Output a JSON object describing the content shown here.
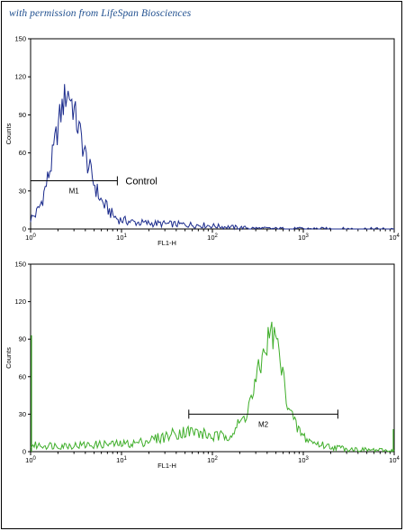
{
  "caption": "with permission from LifeSpan Biosciences",
  "colors": {
    "panel1_line": "#1a2a8c",
    "panel2_line": "#3fae2a",
    "axis": "#000000",
    "caption": "#1f4f8f"
  },
  "chart_data": [
    {
      "type": "line",
      "title": "",
      "xlabel": "FL1-H",
      "ylabel": "Counts",
      "xscale": "log",
      "xlim": [
        1,
        10000
      ],
      "ylim": [
        0,
        150
      ],
      "yticks": [
        0,
        30,
        60,
        90,
        120,
        150
      ],
      "xtick_labels": [
        {
          "base": "10",
          "exp": "0"
        },
        {
          "base": "10",
          "exp": "1"
        },
        {
          "base": "10",
          "exp": "2"
        },
        {
          "base": "10",
          "exp": "3"
        },
        {
          "base": "10",
          "exp": "4"
        }
      ],
      "gate": {
        "label": "M1",
        "x_start": 1,
        "x_end": 9,
        "y": 38
      },
      "annotation": "Control",
      "series": [
        {
          "color": "#1a2a8c",
          "x": [
            1,
            1.15,
            1.3,
            1.5,
            1.7,
            1.9,
            2.1,
            2.3,
            2.5,
            2.7,
            2.9,
            3.2,
            3.6,
            4,
            4.5,
            5,
            5.5,
            6,
            7,
            8,
            9,
            10,
            12,
            15,
            20,
            30,
            50,
            80,
            120,
            200,
            300,
            500,
            1000,
            10000
          ],
          "y": [
            8,
            12,
            20,
            36,
            52,
            72,
            88,
            100,
            108,
            106,
            98,
            85,
            72,
            58,
            46,
            36,
            28,
            22,
            16,
            11,
            8,
            7,
            6,
            5,
            4.5,
            4,
            3.5,
            3,
            2,
            1.2,
            0.6,
            0.3,
            0.2,
            0
          ]
        }
      ]
    },
    {
      "type": "line",
      "title": "",
      "xlabel": "FL1-H",
      "ylabel": "Counts",
      "xscale": "log",
      "xlim": [
        1,
        10000
      ],
      "ylim": [
        0,
        150
      ],
      "yticks": [
        0,
        30,
        60,
        90,
        120,
        150
      ],
      "xtick_labels": [
        {
          "base": "10",
          "exp": "0"
        },
        {
          "base": "10",
          "exp": "1"
        },
        {
          "base": "10",
          "exp": "2"
        },
        {
          "base": "10",
          "exp": "3"
        },
        {
          "base": "10",
          "exp": "4"
        }
      ],
      "gate": {
        "label": "M2",
        "x_start": 55,
        "x_end": 2400,
        "y": 30
      },
      "series": [
        {
          "color": "#3fae2a",
          "x": [
            1,
            1.2,
            1.5,
            2,
            3,
            5,
            7,
            10,
            15,
            20,
            30,
            40,
            50,
            60,
            70,
            80,
            100,
            130,
            170,
            220,
            280,
            340,
            400,
            450,
            500,
            550,
            600,
            700,
            800,
            1000,
            1300,
            1700,
            2200,
            3000,
            5000,
            8000,
            10000
          ],
          "y": [
            5,
            5,
            5,
            5,
            5,
            5.5,
            6,
            6,
            7,
            9,
            12,
            15,
            16,
            16,
            15,
            14,
            12,
            12,
            16,
            26,
            46,
            70,
            88,
            95,
            90,
            76,
            58,
            36,
            22,
            12,
            7,
            5,
            3.5,
            2.5,
            1.5,
            1,
            1
          ]
        }
      ]
    }
  ]
}
